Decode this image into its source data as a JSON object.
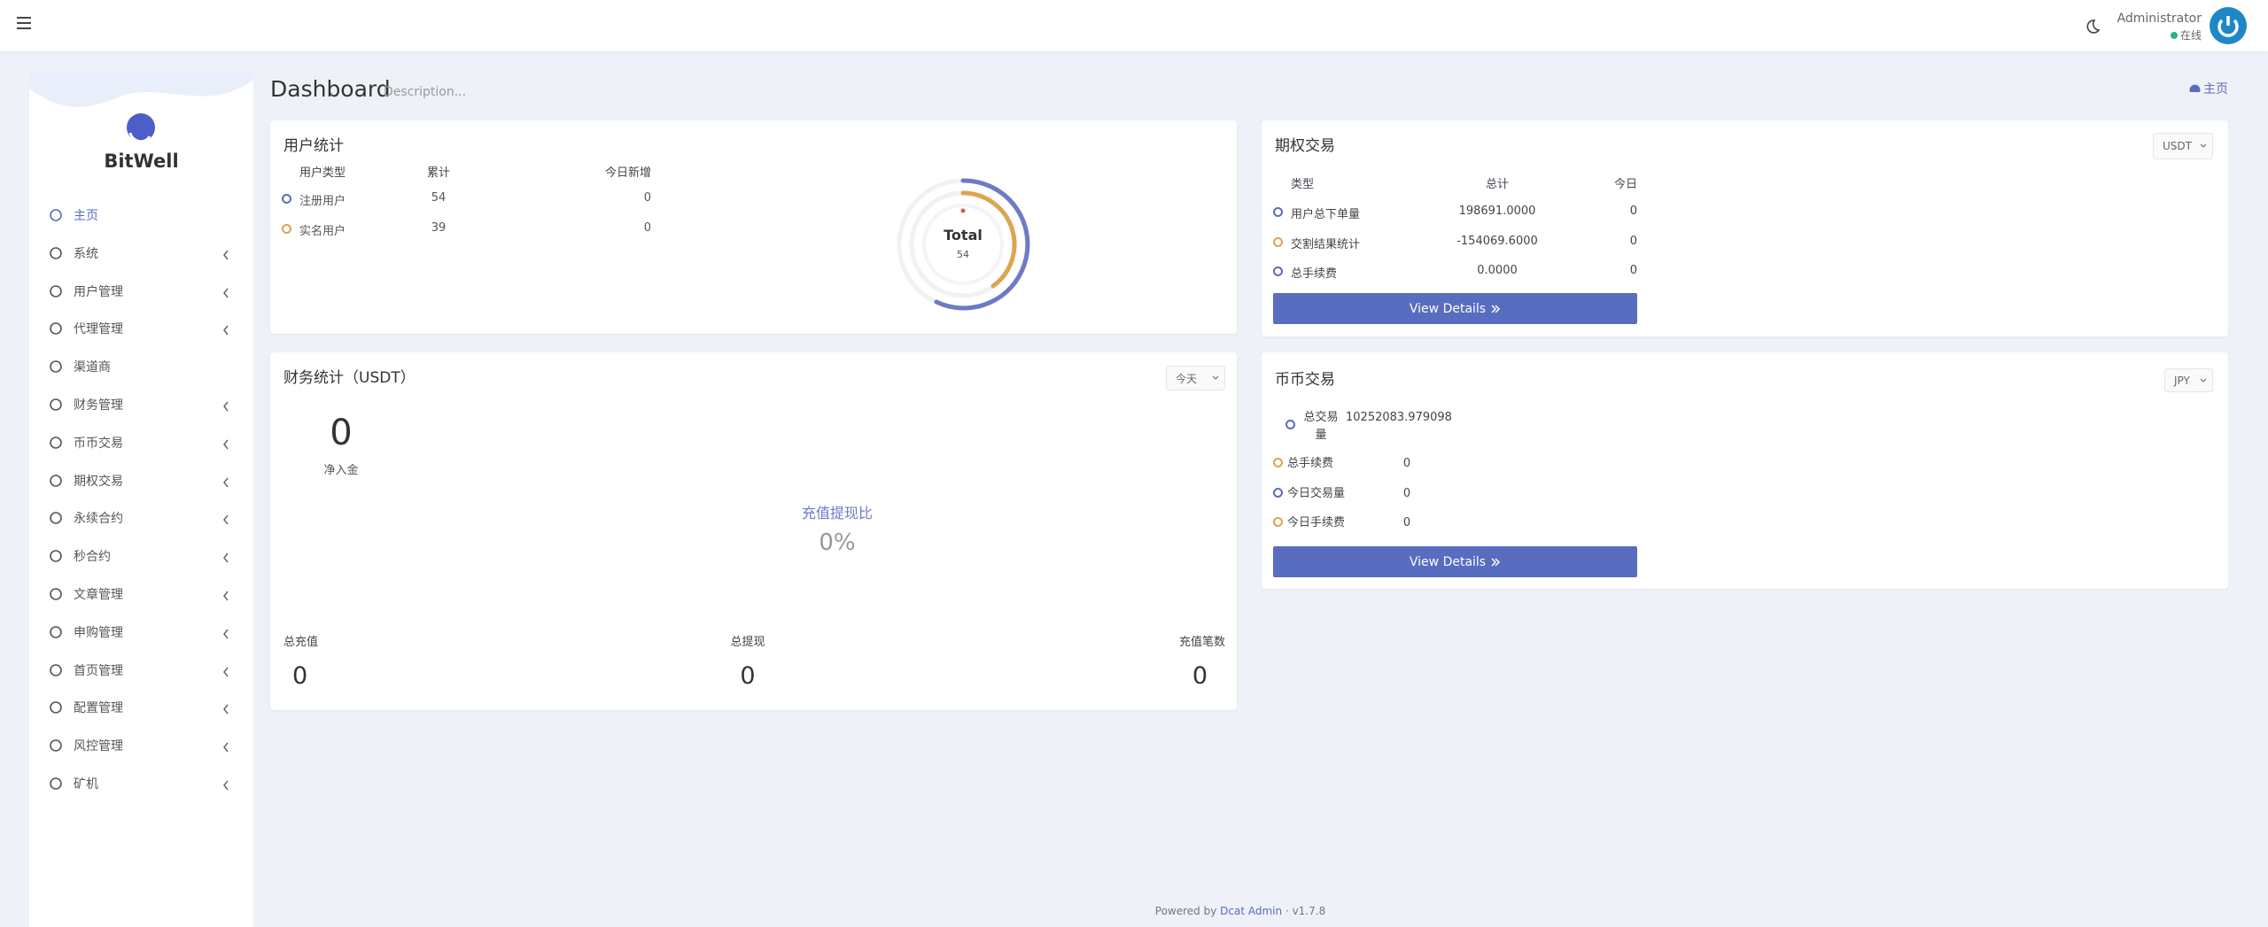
{
  "topbar": {
    "user": "Administrator",
    "status": "在线"
  },
  "sidebar": {
    "brand": "BitWell",
    "menu": [
      {
        "label": "主页",
        "submenu": false
      },
      {
        "label": "系统",
        "submenu": true
      },
      {
        "label": "用户管理",
        "submenu": true
      },
      {
        "label": "代理管理",
        "submenu": true
      },
      {
        "label": "渠道商",
        "submenu": false
      },
      {
        "label": "财务管理",
        "submenu": true
      },
      {
        "label": "币币交易",
        "submenu": true
      },
      {
        "label": "期权交易",
        "submenu": true
      },
      {
        "label": "永续合约",
        "submenu": true
      },
      {
        "label": "秒合约",
        "submenu": true
      },
      {
        "label": "文章管理",
        "submenu": true
      },
      {
        "label": "申购管理",
        "submenu": true
      },
      {
        "label": "首页管理",
        "submenu": true
      },
      {
        "label": "配置管理",
        "submenu": true
      },
      {
        "label": "风控管理",
        "submenu": true
      },
      {
        "label": "矿机",
        "submenu": true
      }
    ]
  },
  "header": {
    "title": "Dashboard",
    "description": "Description...",
    "breadcrumb": "主页"
  },
  "user_stats": {
    "title": "用户统计",
    "columns": [
      "用户类型",
      "累计",
      "今日新增"
    ],
    "rows": [
      [
        "注册用户",
        54,
        0
      ],
      [
        "实名用户",
        39,
        0
      ]
    ],
    "donut": {
      "label": "Total",
      "value": 54
    }
  },
  "options_trade": {
    "title": "期权交易",
    "currency": "USDT",
    "columns": [
      "类型",
      "总计",
      "今日"
    ],
    "rows": [
      [
        "用户总下单量",
        "198691.0000",
        0
      ],
      [
        "交割结果统计",
        "-154069.6000",
        0
      ],
      [
        "总手续费",
        "0.0000",
        0
      ]
    ],
    "button": "View Details"
  },
  "finance": {
    "title": "财务统计（USDT）",
    "period": "今天",
    "net": 0,
    "net_label": "净入金",
    "ratio_label": "充值提现比",
    "ratio": "0%",
    "totals": [
      {
        "label": "总充值",
        "value": 0
      },
      {
        "label": "总提现",
        "value": 0
      },
      {
        "label": "充值笔数",
        "value": 0
      }
    ]
  },
  "coin_trade": {
    "title": "币币交易",
    "currency": "JPY",
    "rows": [
      [
        "总交易量",
        "10252083.979098"
      ],
      [
        "总手续费",
        0
      ],
      [
        "今日交易量",
        0
      ],
      [
        "今日手续费",
        0
      ]
    ],
    "button": "View Details"
  },
  "footer": {
    "prefix": "Powered by",
    "link": "Dcat Admin",
    "version": "v1.7.8"
  }
}
